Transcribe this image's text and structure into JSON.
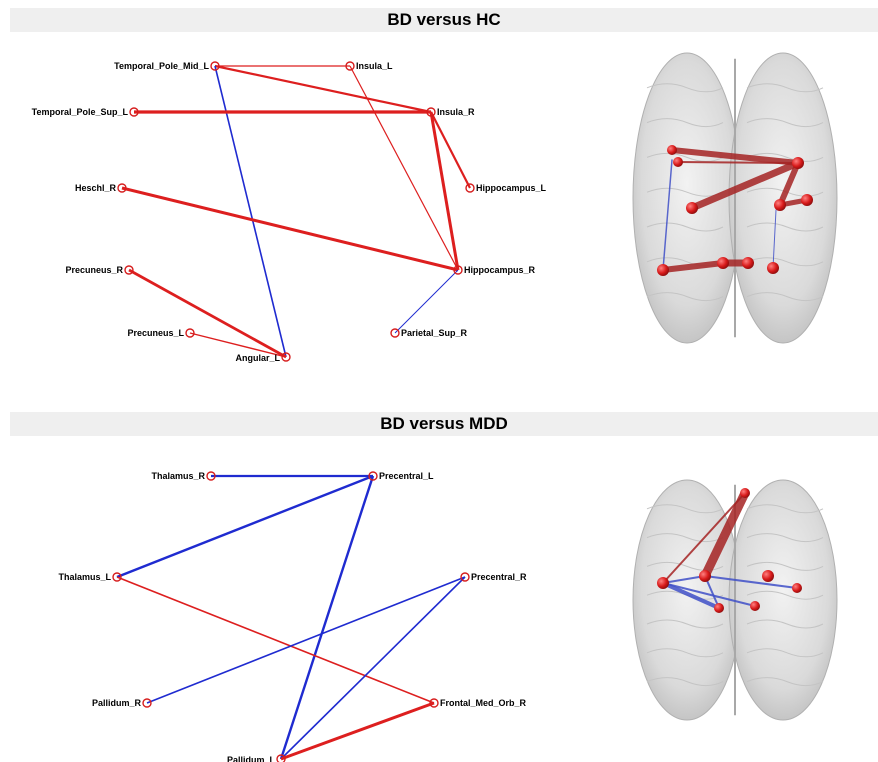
{
  "panels": [
    {
      "title": "BD versus HC",
      "nodes": [
        {
          "id": "tpm",
          "label": "Temporal_Pole_Mid_L"
        },
        {
          "id": "ins_l",
          "label": "Insula_L"
        },
        {
          "id": "tps",
          "label": "Temporal_Pole_Sup_L"
        },
        {
          "id": "ins_r",
          "label": "Insula_R"
        },
        {
          "id": "hes",
          "label": "Heschl_R"
        },
        {
          "id": "hip_l",
          "label": "Hippocampus_L"
        },
        {
          "id": "hip_r",
          "label": "Hippocampus_R"
        },
        {
          "id": "pre_r",
          "label": "Precuneus_R"
        },
        {
          "id": "pre_l",
          "label": "Precuneus_L"
        },
        {
          "id": "par",
          "label": "Parietal_Sup_R"
        },
        {
          "id": "ang",
          "label": "Angular_L"
        }
      ],
      "edges": [
        {
          "from": "tpm",
          "to": "ins_l",
          "sign": "positive",
          "strength": 1.2
        },
        {
          "from": "tpm",
          "to": "ins_r",
          "sign": "positive",
          "strength": 2.2
        },
        {
          "from": "tpm",
          "to": "ang",
          "sign": "negative",
          "strength": 1.6
        },
        {
          "from": "ins_l",
          "to": "hip_r",
          "sign": "positive",
          "strength": 1.2
        },
        {
          "from": "tps",
          "to": "ins_r",
          "sign": "positive",
          "strength": 3.2
        },
        {
          "from": "ins_r",
          "to": "hip_l",
          "sign": "positive",
          "strength": 2.2
        },
        {
          "from": "ins_r",
          "to": "hip_r",
          "sign": "positive",
          "strength": 3.0
        },
        {
          "from": "hes",
          "to": "hip_r",
          "sign": "positive",
          "strength": 3.0
        },
        {
          "from": "hip_r",
          "to": "par",
          "sign": "negative",
          "strength": 1.0
        },
        {
          "from": "pre_r",
          "to": "ang",
          "sign": "positive",
          "strength": 2.8
        },
        {
          "from": "pre_l",
          "to": "ang",
          "sign": "positive",
          "strength": 1.4
        }
      ]
    },
    {
      "title": "BD versus MDD",
      "nodes": [
        {
          "id": "thal_r",
          "label": "Thalamus_R"
        },
        {
          "id": "prec_l",
          "label": "Precentral_L"
        },
        {
          "id": "thal_l",
          "label": "Thalamus_L"
        },
        {
          "id": "prec_r",
          "label": "Precentral_R"
        },
        {
          "id": "pal_r",
          "label": "Pallidum_R"
        },
        {
          "id": "fmo",
          "label": "Frontal_Med_Orb_R"
        },
        {
          "id": "pal_l",
          "label": "Pallidum_L"
        }
      ],
      "edges": [
        {
          "from": "thal_r",
          "to": "prec_l",
          "sign": "negative",
          "strength": 2.2
        },
        {
          "from": "thal_l",
          "to": "prec_l",
          "sign": "negative",
          "strength": 2.4
        },
        {
          "from": "pal_l",
          "to": "prec_l",
          "sign": "negative",
          "strength": 2.4
        },
        {
          "from": "thal_l",
          "to": "fmo",
          "sign": "positive",
          "strength": 1.6
        },
        {
          "from": "pal_r",
          "to": "prec_r",
          "sign": "negative",
          "strength": 1.6
        },
        {
          "from": "pal_l",
          "to": "prec_r",
          "sign": "negative",
          "strength": 1.6
        },
        {
          "from": "pal_l",
          "to": "fmo",
          "sign": "positive",
          "strength": 3.0
        }
      ]
    }
  ],
  "colors": {
    "positive": "#dd1f1f",
    "negative": "#1f2bd0",
    "node_stroke": "#d61d1d",
    "header_bg": "#efefef",
    "brain_fill": "#dcdcdc",
    "brain_edge_pos": "#a52424",
    "brain_edge_neg": "#4050c8",
    "brain_node": "#d81a1a"
  }
}
